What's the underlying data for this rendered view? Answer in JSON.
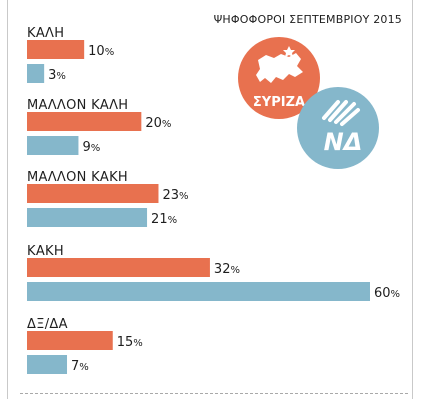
{
  "subtitle": "ΨΗΦΟΦΟΡΟΙ ΣΕΠΤΕΜΒΡΙΟΥ 2015",
  "colors": {
    "syriza": "#e8714f",
    "nd": "#85b7cb"
  },
  "logos": {
    "syriza": {
      "text": "ΣΥΡΙΖΑ",
      "icon": "syriza-party-logo"
    },
    "nd": {
      "text": "ΝΔ",
      "icon": "nd-party-logo"
    }
  },
  "chart_data": {
    "type": "bar",
    "orientation": "horizontal",
    "categories": [
      "ΚΑΛΗ",
      "ΜΑΛΛΟΝ ΚΑΛΗ",
      "ΜΑΛΛΟΝ ΚΑΚΗ",
      "ΚΑΚΗ",
      "ΔΞ/ΔΑ"
    ],
    "series": [
      {
        "name": "ΣΥΡΙΖΑ",
        "color": "#e8714f",
        "values": [
          10,
          20,
          23,
          32,
          15
        ]
      },
      {
        "name": "ΝΔ",
        "color": "#85b7cb",
        "values": [
          3,
          9,
          21,
          60,
          7
        ]
      }
    ],
    "unit": "%",
    "xlim": [
      0,
      60
    ],
    "grid": false,
    "legend": "top-right (party logos)"
  }
}
